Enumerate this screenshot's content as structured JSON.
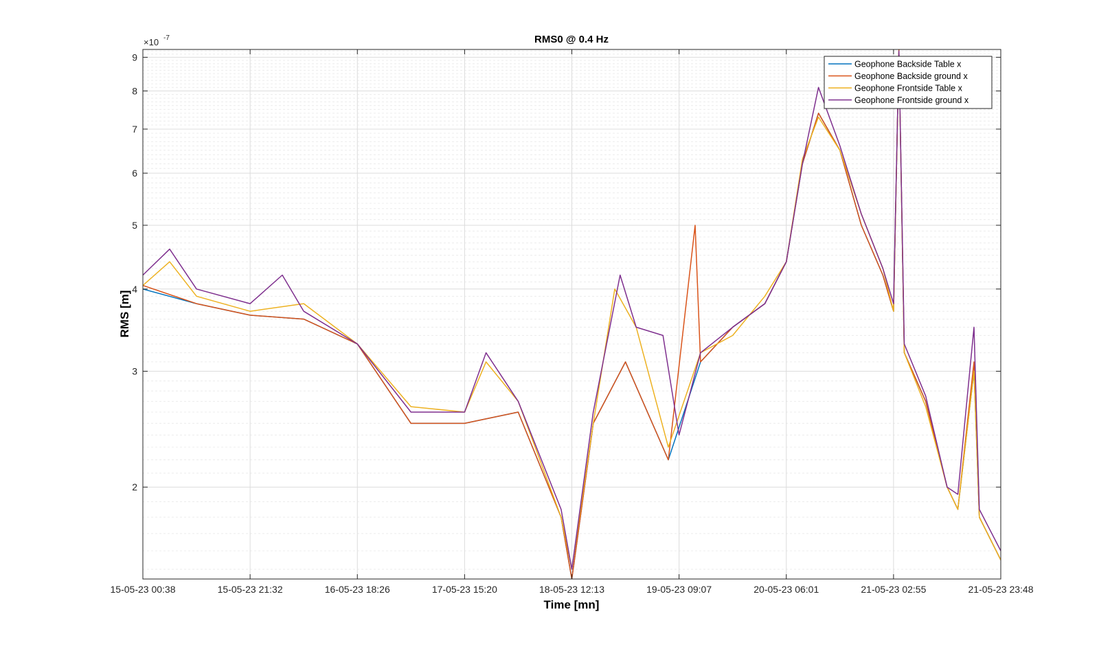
{
  "chart_data": {
    "type": "line",
    "title": "RMS0 @ 0.4 Hz",
    "xlabel": "Time [mn]",
    "ylabel": "RMS [m]",
    "y_exponent_label": "×10",
    "y_exponent_power": "-7",
    "y_scale": "log",
    "ylim": [
      1.45,
      9.25
    ],
    "xlim": [
      0,
      8
    ],
    "x_ticks": [
      0,
      1,
      2,
      3,
      4,
      5,
      6,
      7,
      8
    ],
    "x_tick_labels": [
      "15-05-23 00:38",
      "15-05-23 21:32",
      "16-05-23 18:26",
      "17-05-23 15:20",
      "18-05-23 12:13",
      "19-05-23 09:07",
      "20-05-23 06:01",
      "21-05-23 02:55",
      "21-05-23 23:48"
    ],
    "y_ticks": [
      2,
      3,
      4,
      5,
      6,
      7,
      8,
      9
    ],
    "y_tick_labels": [
      "2",
      "3",
      "4",
      "5",
      "6",
      "7",
      "8",
      "9"
    ],
    "grid": true,
    "legend_position": "top-right",
    "colors": {
      "backside_table": "#0072BD",
      "backside_ground": "#D95319",
      "frontside_table": "#EDB120",
      "frontside_ground": "#7E2F8E",
      "axes": "#262626",
      "grid_major": "#dcdcdc",
      "grid_minor": "#ececec"
    },
    "series": [
      {
        "name": "Geophone Backside Table x",
        "key": "backside_table",
        "x": [
          0,
          0.5,
          1.0,
          1.5,
          2.0,
          2.5,
          3.0,
          3.5,
          3.9,
          4.0,
          4.2,
          4.5,
          4.9,
          5.2,
          5.5,
          5.8,
          6.0,
          6.15,
          6.3,
          6.5,
          6.7,
          6.9,
          7.0,
          7.05,
          7.1,
          7.3,
          7.5,
          7.6,
          7.75,
          7.8,
          8.0
        ],
        "values": [
          4.0,
          3.8,
          3.65,
          3.6,
          3.3,
          2.5,
          2.5,
          2.6,
          1.8,
          1.45,
          2.5,
          3.1,
          2.2,
          3.1,
          3.5,
          3.8,
          4.4,
          6.2,
          7.4,
          6.5,
          5.0,
          4.2,
          3.7,
          9.2,
          3.2,
          2.7,
          2.0,
          1.85,
          3.0,
          1.8,
          1.55
        ]
      },
      {
        "name": "Geophone Backside ground x",
        "key": "backside_ground",
        "x": [
          0,
          0.5,
          1.0,
          1.5,
          2.0,
          2.5,
          3.0,
          3.5,
          3.9,
          4.0,
          4.2,
          4.5,
          4.9,
          5.15,
          5.2,
          5.5,
          5.8,
          6.0,
          6.15,
          6.3,
          6.5,
          6.7,
          6.9,
          7.0,
          7.05,
          7.1,
          7.3,
          7.5,
          7.6,
          7.75,
          7.8,
          8.0
        ],
        "values": [
          4.05,
          3.8,
          3.65,
          3.6,
          3.3,
          2.5,
          2.5,
          2.6,
          1.8,
          1.45,
          2.5,
          3.1,
          2.2,
          5.0,
          3.1,
          3.5,
          3.8,
          4.4,
          6.2,
          7.4,
          6.5,
          5.0,
          4.2,
          3.7,
          9.25,
          3.2,
          2.7,
          2.0,
          1.85,
          3.1,
          1.8,
          1.55
        ]
      },
      {
        "name": "Geophone Frontside Table x",
        "key": "frontside_table",
        "x": [
          0,
          0.25,
          0.5,
          1.0,
          1.5,
          2.0,
          2.5,
          3.0,
          3.2,
          3.5,
          3.9,
          4.0,
          4.2,
          4.4,
          4.6,
          4.9,
          5.2,
          5.5,
          5.8,
          6.0,
          6.15,
          6.3,
          6.5,
          6.7,
          6.9,
          7.0,
          7.05,
          7.1,
          7.3,
          7.5,
          7.6,
          7.75,
          7.8,
          8.0
        ],
        "values": [
          4.05,
          4.4,
          3.9,
          3.7,
          3.8,
          3.3,
          2.65,
          2.6,
          3.1,
          2.7,
          1.8,
          1.5,
          2.5,
          4.0,
          3.5,
          2.3,
          3.2,
          3.4,
          3.9,
          4.4,
          6.3,
          7.3,
          6.5,
          5.2,
          4.3,
          3.7,
          9.2,
          3.2,
          2.65,
          2.0,
          1.85,
          3.0,
          1.8,
          1.55
        ]
      },
      {
        "name": "Geophone Frontside ground x",
        "key": "frontside_ground",
        "x": [
          0,
          0.25,
          0.5,
          1.0,
          1.3,
          1.5,
          2.0,
          2.5,
          3.0,
          3.2,
          3.5,
          3.9,
          4.0,
          4.2,
          4.45,
          4.6,
          4.85,
          5.0,
          5.2,
          5.5,
          5.8,
          6.0,
          6.15,
          6.3,
          6.5,
          6.7,
          6.9,
          7.0,
          7.05,
          7.1,
          7.3,
          7.5,
          7.6,
          7.75,
          7.8,
          8.0
        ],
        "values": [
          4.2,
          4.6,
          4.0,
          3.8,
          4.2,
          3.7,
          3.3,
          2.6,
          2.6,
          3.2,
          2.7,
          1.85,
          1.5,
          2.6,
          4.2,
          3.5,
          3.4,
          2.4,
          3.2,
          3.5,
          3.8,
          4.4,
          6.2,
          8.1,
          6.6,
          5.2,
          4.3,
          3.8,
          9.2,
          3.3,
          2.75,
          2.0,
          1.95,
          3.5,
          1.85,
          1.6
        ]
      }
    ]
  }
}
